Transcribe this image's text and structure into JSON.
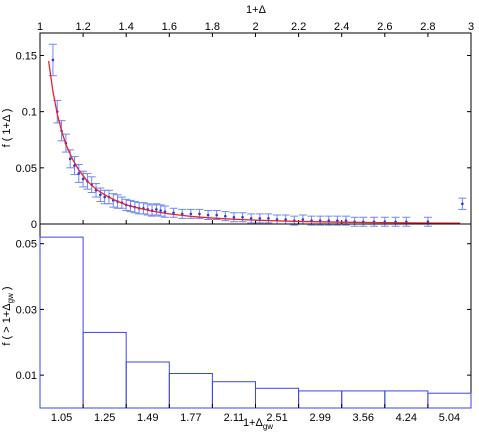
{
  "chart_data": [
    {
      "type": "scatter",
      "top_xlabel": "1+Δ",
      "ylabel": "f ( 1+Δ )",
      "xlim": [
        1,
        3
      ],
      "ylim": [
        0,
        0.17
      ],
      "x_ticks": [
        1,
        1.2,
        1.4,
        1.6,
        1.8,
        2,
        2.2,
        2.4,
        2.6,
        2.8,
        3
      ],
      "x_tick_labels": [
        "1",
        "1.2",
        "1.4",
        "1.6",
        "1.8",
        "2",
        "2.2",
        "2.4",
        "2.6",
        "2.8",
        "3"
      ],
      "y_ticks": [
        0,
        0.05,
        0.1,
        0.15
      ],
      "y_tick_labels": [
        "0",
        "0.05",
        "0.1",
        "0.15"
      ],
      "grid": false,
      "series": [
        {
          "kind": "errorbar",
          "color": "#2b35e0",
          "errcolor": "#6e88f5",
          "x": [
            1.06,
            1.08,
            1.1,
            1.12,
            1.14,
            1.16,
            1.18,
            1.2,
            1.22,
            1.24,
            1.26,
            1.28,
            1.3,
            1.32,
            1.34,
            1.36,
            1.38,
            1.4,
            1.42,
            1.44,
            1.46,
            1.48,
            1.5,
            1.52,
            1.54,
            1.56,
            1.58,
            1.62,
            1.66,
            1.7,
            1.74,
            1.78,
            1.82,
            1.86,
            1.9,
            1.94,
            1.98,
            2.02,
            2.06,
            2.1,
            2.14,
            2.18,
            2.22,
            2.26,
            2.3,
            2.34,
            2.38,
            2.42,
            2.46,
            2.5,
            2.55,
            2.6,
            2.65,
            2.7,
            2.8,
            2.96
          ],
          "y": [
            0.146,
            0.1,
            0.083,
            0.072,
            0.058,
            0.052,
            0.045,
            0.04,
            0.038,
            0.035,
            0.03,
            0.026,
            0.024,
            0.024,
            0.021,
            0.02,
            0.019,
            0.017,
            0.016,
            0.015,
            0.014,
            0.014,
            0.013,
            0.012,
            0.013,
            0.012,
            0.011,
            0.01,
            0.009,
            0.009,
            0.009,
            0.008,
            0.008,
            0.007,
            0.006,
            0.006,
            0.005,
            0.005,
            0.005,
            0.004,
            0.004,
            0.003,
            0.004,
            0.003,
            0.003,
            0.003,
            0.003,
            0.003,
            0.002,
            0.002,
            0.002,
            0.002,
            0.002,
            0.002,
            0.002,
            0.018
          ],
          "err": [
            0.014,
            0.01,
            0.009,
            0.008,
            0.008,
            0.008,
            0.008,
            0.007,
            0.007,
            0.007,
            0.006,
            0.006,
            0.006,
            0.006,
            0.006,
            0.006,
            0.005,
            0.005,
            0.005,
            0.005,
            0.005,
            0.005,
            0.005,
            0.005,
            0.005,
            0.005,
            0.005,
            0.004,
            0.004,
            0.004,
            0.004,
            0.004,
            0.004,
            0.004,
            0.004,
            0.004,
            0.004,
            0.004,
            0.004,
            0.004,
            0.004,
            0.004,
            0.004,
            0.004,
            0.004,
            0.004,
            0.004,
            0.004,
            0.004,
            0.004,
            0.004,
            0.004,
            0.004,
            0.004,
            0.004,
            0.005
          ]
        },
        {
          "kind": "fit",
          "color": "#e8222c",
          "x": [
            1.04,
            1.06,
            1.08,
            1.1,
            1.12,
            1.15,
            1.18,
            1.22,
            1.26,
            1.3,
            1.35,
            1.4,
            1.46,
            1.52,
            1.6,
            1.7,
            1.8,
            1.9,
            2.0,
            2.1,
            2.2,
            2.4,
            2.6,
            2.8,
            2.95
          ],
          "y": [
            0.145,
            0.118,
            0.098,
            0.083,
            0.071,
            0.058,
            0.048,
            0.038,
            0.031,
            0.026,
            0.021,
            0.017,
            0.014,
            0.0115,
            0.009,
            0.0068,
            0.0053,
            0.0042,
            0.0034,
            0.0028,
            0.0023,
            0.0016,
            0.0012,
            0.0009,
            0.0007
          ]
        }
      ]
    },
    {
      "type": "bar",
      "xlabel": "1+Δ",
      "xlabel_sub": "gw",
      "ylabel": "f ( > 1+Δ",
      "ylabel_sub": "gw",
      "ylabel_end": " )",
      "categories": [
        "1.05",
        "1.25",
        "1.49",
        "1.77",
        "2.11",
        "2.51",
        "2.99",
        "3.56",
        "4.24",
        "5.04"
      ],
      "values": [
        0.052,
        0.023,
        0.014,
        0.0105,
        0.008,
        0.006,
        0.0052,
        0.0052,
        0.0052,
        0.0045
      ],
      "ylim": [
        0,
        0.056
      ],
      "y_ticks": [
        0.01,
        0.03,
        0.05
      ],
      "y_tick_labels": [
        "0.01",
        "0.03",
        "0.05"
      ],
      "bar_color": "#3a46e8",
      "fill": "none",
      "grid": false
    }
  ]
}
